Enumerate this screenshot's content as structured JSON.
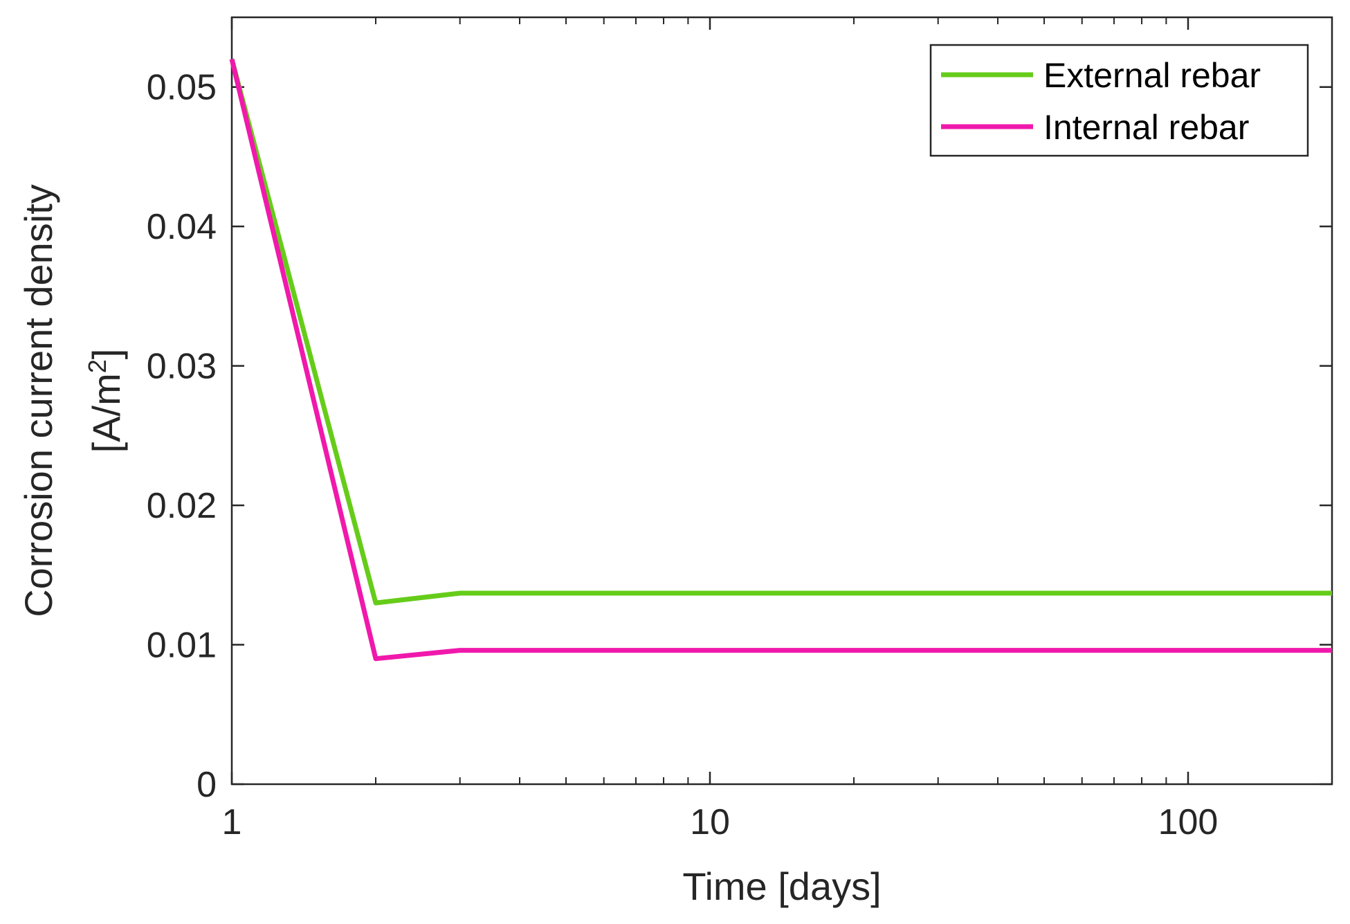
{
  "chart_data": {
    "type": "line",
    "title": "",
    "xlabel": "Time [days]",
    "ylabel_line1": "Corrosion current density",
    "ylabel_line2_prefix": "[A/m",
    "ylabel_line2_sup": "2",
    "ylabel_line2_suffix": "]",
    "x_scale": "log",
    "xlim": [
      1,
      200
    ],
    "ylim": [
      0,
      0.055
    ],
    "grid": false,
    "legend_position": "top-right",
    "x_ticks": [
      1,
      10,
      100
    ],
    "x_tick_labels": [
      "1",
      "10",
      "100"
    ],
    "y_ticks": [
      0,
      0.01,
      0.02,
      0.03,
      0.04,
      0.05
    ],
    "y_tick_labels": [
      "0",
      "0.01",
      "0.02",
      "0.03",
      "0.04",
      "0.05"
    ],
    "x": [
      1,
      2,
      3,
      5,
      10,
      20,
      50,
      100,
      200
    ],
    "series": [
      {
        "name": "External rebar",
        "color": "#66cc1a",
        "values": [
          0.052,
          0.013,
          0.0137,
          0.0137,
          0.0137,
          0.0137,
          0.0137,
          0.0137,
          0.0137
        ]
      },
      {
        "name": "Internal rebar",
        "color": "#f019ab",
        "values": [
          0.052,
          0.009,
          0.0096,
          0.0096,
          0.0096,
          0.0096,
          0.0096,
          0.0096,
          0.0096
        ]
      }
    ]
  }
}
